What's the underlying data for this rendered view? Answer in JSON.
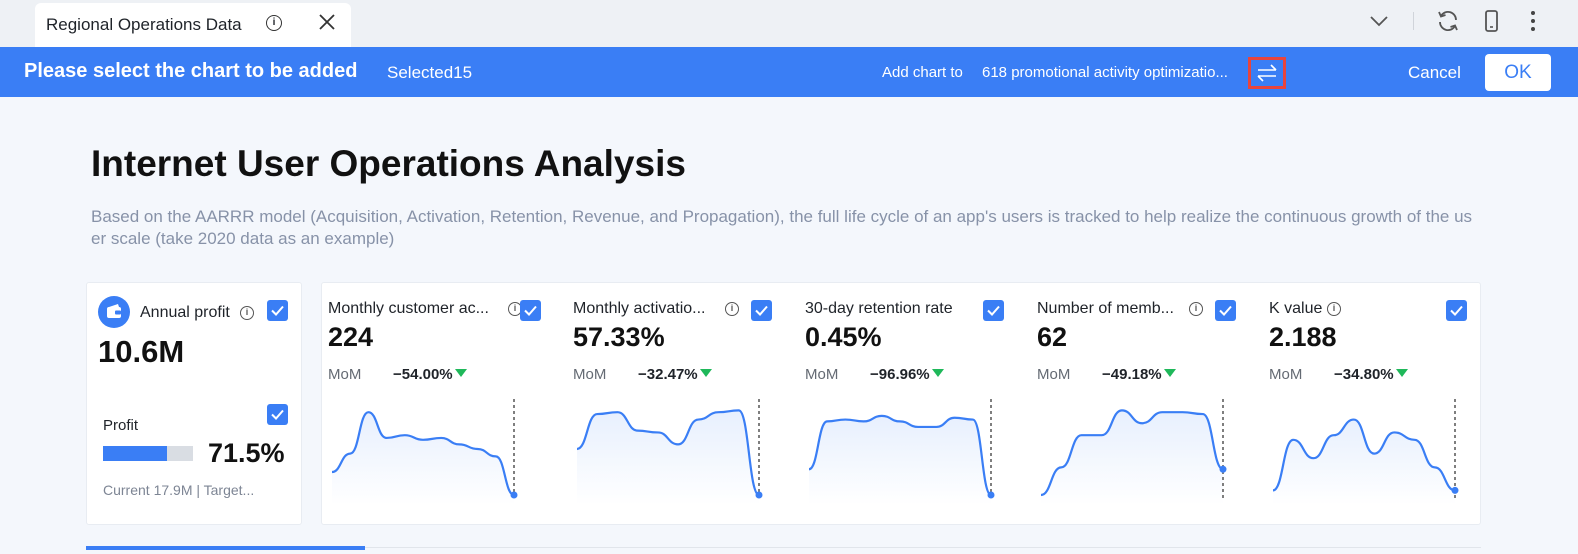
{
  "tab": {
    "title": "Regional Operations Data"
  },
  "action_bar": {
    "title": "Please select the chart to be added",
    "selected": "Selected15",
    "add_to_label": "Add chart to",
    "add_to_target": "618 promotional activity optimizatio...",
    "cancel": "Cancel",
    "ok": "OK"
  },
  "page": {
    "title": "Internet User Operations Analysis",
    "description": "Based on the AARRR model (Acquisition, Activation, Retention, Revenue, and Propagation), the full life cycle of an app's users is tracked to help realize the continuous growth of the user scale (take 2020 data as an example)"
  },
  "profit_card": {
    "label": "Annual profit",
    "value": "10.6M",
    "sub_label": "Profit",
    "progress": 0.715,
    "percent": "71.5%",
    "footer": "Current 17.9M | Target..."
  },
  "metrics": [
    {
      "label": "Monthly customer ac...",
      "value": "224",
      "mom_label": "MoM",
      "change": "−54.00%",
      "trend": [
        0.25,
        0.45,
        0.9,
        0.62,
        0.65,
        0.6,
        0.62,
        0.55,
        0.5,
        0.42,
        0.0
      ]
    },
    {
      "label": "Monthly activatio...",
      "value": "57.33%",
      "mom_label": "MoM",
      "change": "−32.47%",
      "trend": [
        0.5,
        0.88,
        0.9,
        0.7,
        0.68,
        0.55,
        0.82,
        0.9,
        0.92,
        0.0
      ]
    },
    {
      "label": "30-day retention rate",
      "value": "0.45%",
      "mom_label": "MoM",
      "change": "−96.96%",
      "trend": [
        0.28,
        0.8,
        0.82,
        0.8,
        0.86,
        0.8,
        0.74,
        0.74,
        0.84,
        0.82,
        0.0
      ]
    },
    {
      "label": "Number of memb...",
      "value": "62",
      "mom_label": "MoM",
      "change": "−49.18%",
      "trend": [
        0.0,
        0.3,
        0.65,
        0.65,
        0.92,
        0.78,
        0.9,
        0.9,
        0.88,
        0.28
      ]
    },
    {
      "label": "K value",
      "value": "2.188",
      "mom_label": "MoM",
      "change": "−34.80%",
      "trend": [
        0.05,
        0.6,
        0.4,
        0.65,
        0.82,
        0.45,
        0.68,
        0.6,
        0.3,
        0.05
      ]
    }
  ],
  "colors": {
    "accent": "#3a7ef5",
    "down": "#1fb85a",
    "highlight": "#e8453c"
  }
}
